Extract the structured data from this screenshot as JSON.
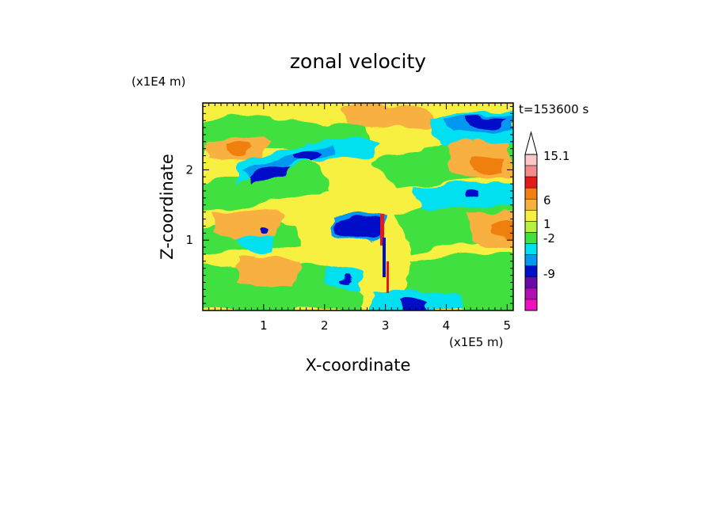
{
  "chart_data": {
    "type": "heatmap",
    "title": "zonal velocity",
    "xlabel": "X-coordinate",
    "ylabel": "Z-coordinate",
    "x_unit": "(x1E5 m)",
    "y_unit": "(x1E4 m)",
    "time_label": "t=153600 s",
    "xlim": [
      0,
      5.1
    ],
    "ylim": [
      0,
      2.95
    ],
    "x_ticks": [
      "1",
      "2",
      "3",
      "4",
      "5"
    ],
    "y_ticks": [
      "1",
      "2"
    ],
    "colorbar": {
      "labels": [
        "15.1",
        "6",
        "1",
        "-2",
        "-9"
      ],
      "levels_top_to_bottom": [
        "#f9c9c9",
        "#f48a8a",
        "#e31a1c",
        "#f08010",
        "#f8b040",
        "#f8f040",
        "#b8f040",
        "#40e040",
        "#00e0f0",
        "#0098f0",
        "#0010c8",
        "#6a0aa8",
        "#b010b0",
        "#f010c0"
      ],
      "extend_top": true
    },
    "field_colors": {
      "yellow": "#f8f040",
      "light_green": "#40e040",
      "orange": "#f8b040",
      "dark_orange": "#f08010",
      "cyan": "#00e0f0",
      "light_blue": "#0098f0",
      "dark_blue": "#0010c8",
      "red": "#e31a1c"
    }
  }
}
